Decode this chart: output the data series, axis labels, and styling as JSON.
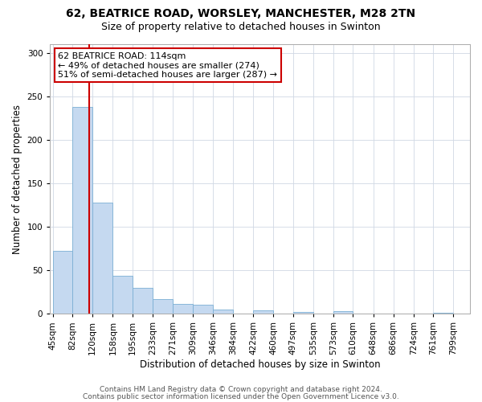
{
  "title1": "62, BEATRICE ROAD, WORSLEY, MANCHESTER, M28 2TN",
  "title2": "Size of property relative to detached houses in Swinton",
  "xlabel": "Distribution of detached houses by size in Swinton",
  "ylabel": "Number of detached properties",
  "bin_labels": [
    "45sqm",
    "82sqm",
    "120sqm",
    "158sqm",
    "195sqm",
    "233sqm",
    "271sqm",
    "309sqm",
    "346sqm",
    "384sqm",
    "422sqm",
    "460sqm",
    "497sqm",
    "535sqm",
    "573sqm",
    "610sqm",
    "648sqm",
    "686sqm",
    "724sqm",
    "761sqm",
    "799sqm"
  ],
  "bin_edges": [
    45,
    82,
    120,
    158,
    195,
    233,
    271,
    309,
    346,
    384,
    422,
    460,
    497,
    535,
    573,
    610,
    648,
    686,
    724,
    761,
    799
  ],
  "bar_heights": [
    72,
    238,
    128,
    44,
    30,
    17,
    11,
    10,
    5,
    0,
    4,
    0,
    2,
    0,
    3,
    0,
    0,
    0,
    0,
    1
  ],
  "bar_color": "#c5d9f0",
  "bar_edgecolor": "#7bafd4",
  "vline_x": 114,
  "vline_color": "#cc0000",
  "annotation_line1": "62 BEATRICE ROAD: 114sqm",
  "annotation_line2": "← 49% of detached houses are smaller (274)",
  "annotation_line3": "51% of semi-detached houses are larger (287) →",
  "annotation_box_edgecolor": "#cc0000",
  "ylim": [
    0,
    310
  ],
  "yticks": [
    0,
    50,
    100,
    150,
    200,
    250,
    300
  ],
  "grid_color": "#d0d8e4",
  "bg_color": "#ffffff",
  "footer1": "Contains HM Land Registry data © Crown copyright and database right 2024.",
  "footer2": "Contains public sector information licensed under the Open Government Licence v3.0.",
  "title1_fontsize": 10,
  "title2_fontsize": 9,
  "xlabel_fontsize": 8.5,
  "ylabel_fontsize": 8.5,
  "tick_fontsize": 7.5,
  "annotation_fontsize": 8,
  "footer_fontsize": 6.5
}
